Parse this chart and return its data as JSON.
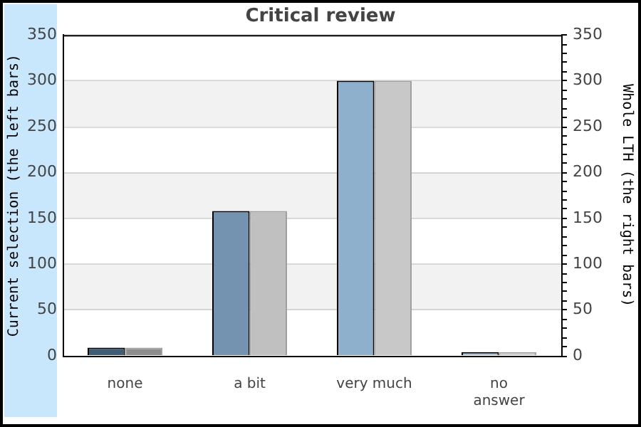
{
  "chart_data": {
    "type": "bar",
    "title": "Critical review",
    "ylabel": "Current selection (the left bars)",
    "y2label": "Whole LTH (the right bars)",
    "categories": [
      "none",
      "a bit",
      "very much",
      "no\nanswer"
    ],
    "series": [
      {
        "colors": [
          "#3f5b76",
          "#7393b0",
          "#8fb0cc",
          "#a9c3da"
        ],
        "values": [
          9,
          158,
          300,
          4
        ],
        "axis": "y"
      },
      {
        "colors": [
          "#8c8c8c",
          "#c0c0c0",
          "#c8c8c8",
          "#d2d2d2"
        ],
        "values": [
          9,
          158,
          300,
          4
        ],
        "axis": "y2"
      }
    ],
    "ylim": [
      0,
      350
    ],
    "yticks": [
      0,
      50,
      100,
      150,
      200,
      250,
      300,
      350
    ],
    "y2lim": [
      0,
      350
    ],
    "y2ticks": [
      0,
      {
        "value": 10,
        "label": null
      },
      {
        "value": 20,
        "label": null
      },
      {
        "value": 30,
        "label": null
      },
      {
        "value": 40,
        "label": null
      },
      50,
      {
        "value": 60,
        "label": null
      },
      {
        "value": 70,
        "label": null
      },
      {
        "value": 80,
        "label": null
      },
      {
        "value": 90,
        "label": null
      },
      100,
      {
        "value": 110,
        "label": null
      },
      {
        "value": 120,
        "label": null
      },
      {
        "value": 130,
        "label": null
      },
      {
        "value": 140,
        "label": null
      },
      150,
      {
        "value": 160,
        "label": null
      },
      {
        "value": 170,
        "label": null
      },
      {
        "value": 180,
        "label": null
      },
      {
        "value": 190,
        "label": null
      },
      200,
      {
        "value": 210,
        "label": null
      },
      {
        "value": 220,
        "label": null
      },
      {
        "value": 230,
        "label": null
      },
      {
        "value": 240,
        "label": null
      },
      250,
      {
        "value": 260,
        "label": null
      },
      {
        "value": 270,
        "label": null
      },
      {
        "value": 280,
        "label": null
      },
      {
        "value": 290,
        "label": null
      },
      300,
      {
        "value": 310,
        "label": null
      },
      {
        "value": 320,
        "label": null
      },
      {
        "value": 330,
        "label": null
      },
      {
        "value": 340,
        "label": null
      },
      350
    ],
    "grid": "y",
    "legend": false
  }
}
